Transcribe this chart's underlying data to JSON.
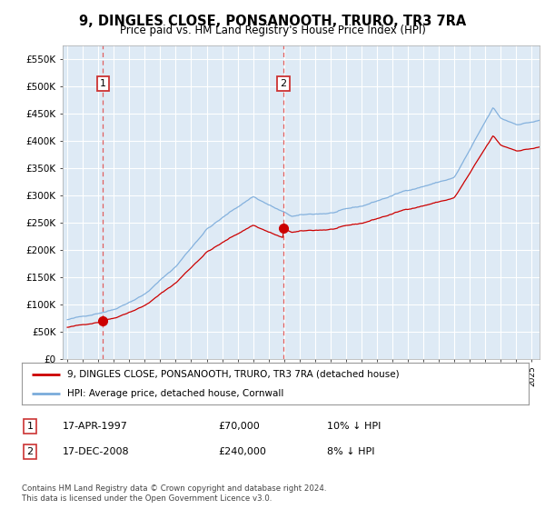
{
  "title": "9, DINGLES CLOSE, PONSANOOTH, TRURO, TR3 7RA",
  "subtitle": "Price paid vs. HM Land Registry's House Price Index (HPI)",
  "ylim": [
    0,
    575000
  ],
  "sale1_x": 1997.29,
  "sale1_price": 70000,
  "sale1_label": "1",
  "sale1_date": "17-APR-1997",
  "sale1_price_str": "£70,000",
  "sale1_pct": "10% ↓ HPI",
  "sale2_x": 2008.96,
  "sale2_price": 240000,
  "sale2_label": "2",
  "sale2_date": "17-DEC-2008",
  "sale2_price_str": "£240,000",
  "sale2_pct": "8% ↓ HPI",
  "legend_property": "9, DINGLES CLOSE, PONSANOOTH, TRURO, TR3 7RA (detached house)",
  "legend_hpi": "HPI: Average price, detached house, Cornwall",
  "footer": "Contains HM Land Registry data © Crown copyright and database right 2024.\nThis data is licensed under the Open Government Licence v3.0.",
  "property_color": "#cc0000",
  "hpi_color": "#7aabdb",
  "dashed_color": "#e06060",
  "bg_color": "#deeaf5",
  "grid_color": "#ffffff",
  "box_color": "#cc3333",
  "xmin": 1995.0,
  "xmax": 2025.5
}
